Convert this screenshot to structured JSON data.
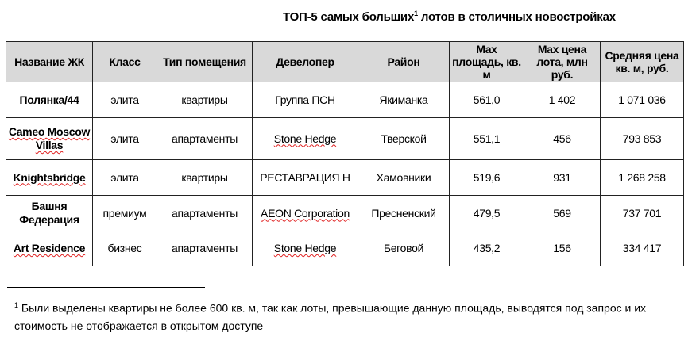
{
  "title": {
    "text": "ТОП-5 самых больших",
    "sup": "1",
    "rest": " лотов в столичных новостройках"
  },
  "table": {
    "headers": [
      "Название ЖК",
      "Класс",
      "Тип помещения",
      "Девелопер",
      "Район",
      "Max площадь, кв. м",
      "Max цена лота, млн руб.",
      "Средняя цена кв. м, руб."
    ],
    "rows": [
      [
        "Полянка/44",
        "элита",
        "квартиры",
        "Группа ПСН",
        "Якиманка",
        "561,0",
        "1 402",
        "1 071 036"
      ],
      [
        "Cameo Moscow Villas",
        "элита",
        "апартаменты",
        "Stone Hedge",
        "Тверской",
        "551,1",
        "456",
        "793 853"
      ],
      [
        "Knightsbridge",
        "элита",
        "квартиры",
        "РЕСТАВРАЦИЯ Н",
        "Хамовники",
        "519,6",
        "931",
        "1 268 258"
      ],
      [
        "Башня Федерация",
        "премиум",
        "апартаменты",
        "AEON Corporation",
        "Пресненский",
        "479,5",
        "569",
        "737 701"
      ],
      [
        "Art Residence",
        "бизнес",
        "апартаменты",
        "Stone Hedge",
        "Беговой",
        "435,2",
        "156",
        "334 417"
      ]
    ]
  },
  "footnote": {
    "mark": "1",
    "text": " Были выделены квартиры не более 600 кв. м, так как лоты, превышающие данную площадь, выводятся под запрос и их стоимость не отображается в открытом доступе"
  },
  "colors": {
    "header_bg": "#d9d9d9",
    "spellcheck": "#e02020"
  }
}
